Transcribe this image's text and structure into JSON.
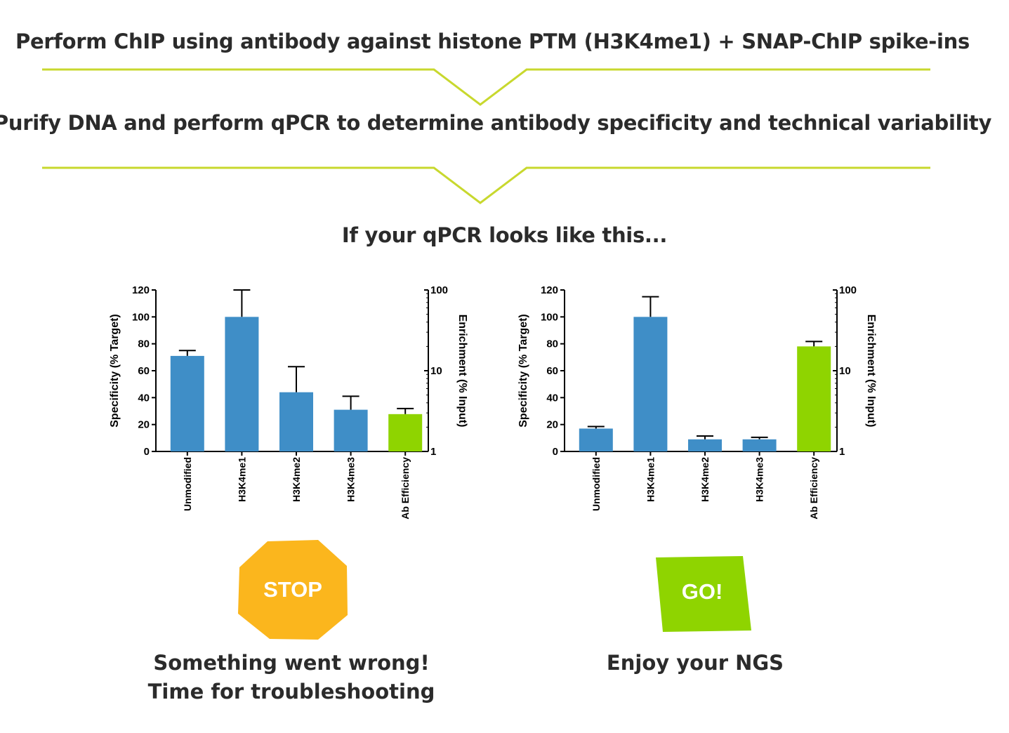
{
  "steps": {
    "step1": "Perform ChIP using antibody against histone PTM (H3K4me1) + SNAP-ChIP spike-ins",
    "step2": "Purify DNA and perform qPCR to determine antibody specificity and technical variability",
    "prompt": "If your qPCR looks like this..."
  },
  "colors": {
    "arrow": "#c8d82e",
    "bar_blue": "#3f8ec7",
    "bar_green": "#8fd400",
    "stop_sign": "#fbb61d",
    "go_sign": "#8fd400",
    "text": "#2b2b2b"
  },
  "chart_data": [
    {
      "type": "bar",
      "categories": [
        "Unmodified",
        "H3K4me1",
        "H3K4me2",
        "H3K4me3",
        "Ab Efficiency"
      ],
      "series": [
        {
          "values": [
            71,
            100,
            44,
            31,
            null
          ],
          "errors": [
            4,
            20,
            19,
            10,
            null
          ],
          "color": "#3f8ec7",
          "axis": "left"
        },
        {
          "values": [
            null,
            null,
            null,
            null,
            2.9
          ],
          "errors": [
            null,
            null,
            null,
            null,
            0.5
          ],
          "color": "#8fd400",
          "axis": "right"
        }
      ],
      "ylabel": "Specificity (% Target)",
      "ylim": [
        0,
        120
      ],
      "yticks": [
        "0",
        "20",
        "40",
        "60",
        "80",
        "100",
        "120"
      ],
      "y2label": "Enrichment (% Input)",
      "y2lim": [
        1,
        100
      ],
      "y2scale": "log",
      "y2ticks": [
        "1",
        "10",
        "100"
      ],
      "grid": false
    },
    {
      "type": "bar",
      "categories": [
        "Unmodified",
        "H3K4me1",
        "H3K4me2",
        "H3K4me3",
        "Ab Efficiency"
      ],
      "series": [
        {
          "values": [
            17,
            100,
            9,
            9,
            null
          ],
          "errors": [
            1.5,
            15,
            2.5,
            1.5,
            null
          ],
          "color": "#3f8ec7",
          "axis": "left"
        },
        {
          "values": [
            null,
            null,
            null,
            null,
            20
          ],
          "errors": [
            null,
            null,
            null,
            null,
            3
          ],
          "color": "#8fd400",
          "axis": "right"
        }
      ],
      "ylabel": "Specificity (% Target)",
      "ylim": [
        0,
        120
      ],
      "yticks": [
        "0",
        "20",
        "40",
        "60",
        "80",
        "100",
        "120"
      ],
      "y2label": "Enrichment (% Input)",
      "y2lim": [
        1,
        100
      ],
      "y2scale": "log",
      "y2ticks": [
        "1",
        "10",
        "100"
      ],
      "grid": false
    }
  ],
  "outcomes": {
    "stop_label": "STOP",
    "stop_line1": "Something went wrong!",
    "stop_line2": "Time for troubleshooting",
    "go_label": "GO!",
    "go_text": "Enjoy your NGS"
  }
}
